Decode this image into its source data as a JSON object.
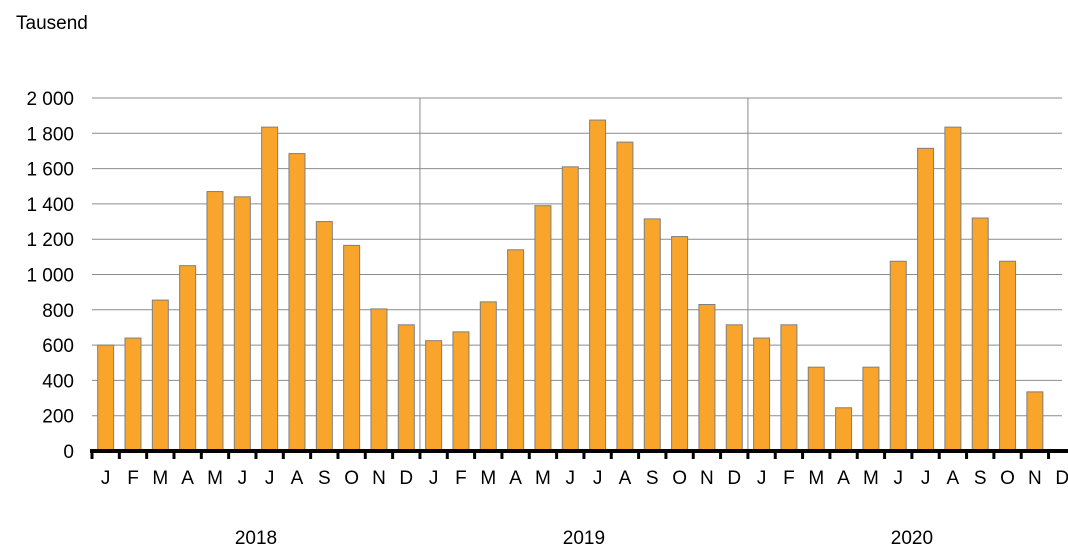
{
  "chart_data": {
    "type": "bar",
    "ylabel": "Tausend",
    "ylim": [
      0,
      2000
    ],
    "yticks": [
      0,
      200,
      400,
      600,
      800,
      1000,
      1200,
      1400,
      1600,
      1800,
      2000
    ],
    "ytick_labels": [
      "0",
      "200",
      "400",
      "600",
      "800",
      "1 000",
      "1 200",
      "1 400",
      "1 600",
      "1 800",
      "2 000"
    ],
    "grid": "horizontal",
    "bar_color": "#F9A52B",
    "bar_edge_color": "#7F7F7F",
    "years": [
      {
        "label": "2018",
        "months": [
          "J",
          "F",
          "M",
          "A",
          "M",
          "J",
          "J",
          "A",
          "S",
          "O",
          "N",
          "D"
        ],
        "values": [
          600,
          640,
          855,
          1050,
          1470,
          1440,
          1835,
          1685,
          1300,
          1165,
          805,
          715
        ]
      },
      {
        "label": "2019",
        "months": [
          "J",
          "F",
          "M",
          "A",
          "M",
          "J",
          "J",
          "A",
          "S",
          "O",
          "N",
          "D"
        ],
        "values": [
          625,
          675,
          845,
          1140,
          1390,
          1610,
          1875,
          1750,
          1315,
          1215,
          830,
          715
        ]
      },
      {
        "label": "2020",
        "months": [
          "J",
          "F",
          "M",
          "A",
          "M",
          "J",
          "J",
          "A",
          "S",
          "O",
          "N",
          "D"
        ],
        "values": [
          640,
          715,
          475,
          245,
          475,
          1075,
          1715,
          1835,
          1320,
          1075,
          335,
          null
        ]
      }
    ]
  }
}
